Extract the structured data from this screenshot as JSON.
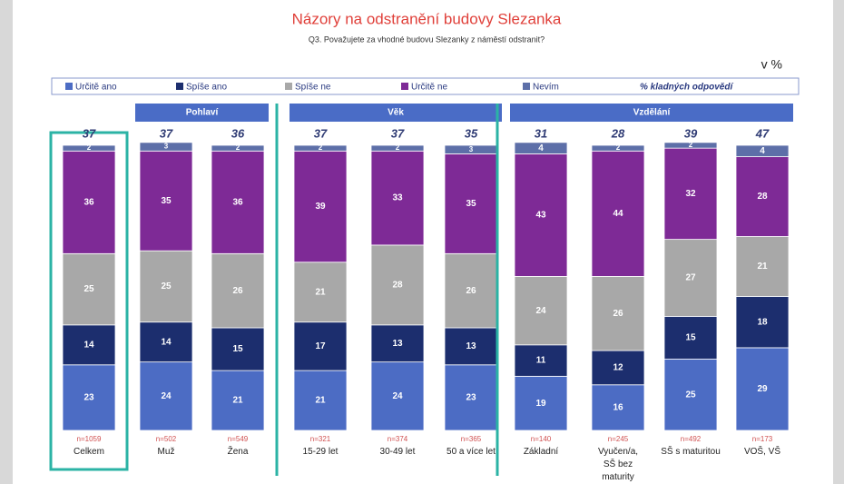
{
  "chart_data": {
    "type": "bar",
    "stacked": true,
    "title": "Názory na odstranění budovy Slezanka",
    "subtitle": "Q3. Považujete za vhodné budovu Slezanky z náměstí odstranit?",
    "unit": "v %",
    "groups": [
      {
        "categories": [
          "Celkem"
        ],
        "sample_sizes": [
          "n=1059"
        ]
      },
      {
        "name": "Pohlaví",
        "categories": [
          "Muž",
          "Žena"
        ],
        "sample_sizes": [
          "n=502",
          "n=549"
        ]
      },
      {
        "name": "Věk",
        "categories": [
          "15-29 let",
          "30-49 let",
          "50 a více let"
        ],
        "sample_sizes": [
          "n=321",
          "n=374",
          "n=365"
        ]
      },
      {
        "name": "Vzdělání",
        "categories": [
          "Základní",
          "Vyučen/a, SŠ bez maturity",
          "SŠ s maturitou",
          "VOŠ, VŠ"
        ],
        "sample_sizes": [
          "n=140",
          "n=245",
          "n=492",
          "n=173"
        ]
      }
    ],
    "series": [
      {
        "name": "Určitě ano",
        "color": "#4c6cc4",
        "values": [
          23,
          24,
          21,
          21,
          24,
          23,
          19,
          16,
          25,
          29
        ]
      },
      {
        "name": "Spíše ano",
        "color": "#1c2e6e",
        "values": [
          14,
          14,
          15,
          17,
          13,
          13,
          11,
          12,
          15,
          18
        ]
      },
      {
        "name": "Spíše ne",
        "color": "#a8a8a8",
        "values": [
          25,
          25,
          26,
          21,
          28,
          26,
          24,
          26,
          27,
          21
        ]
      },
      {
        "name": "Určitě ne",
        "color": "#7e2a96",
        "values": [
          36,
          35,
          36,
          39,
          33,
          35,
          43,
          44,
          32,
          28
        ]
      },
      {
        "name": "Nevím",
        "color": "#5d6fa8",
        "values": [
          2,
          3,
          2,
          2,
          2,
          3,
          4,
          2,
          2,
          4
        ]
      }
    ],
    "positive": {
      "name": "% kladných odpovědí",
      "values": [
        37,
        37,
        36,
        37,
        37,
        35,
        31,
        28,
        39,
        47
      ]
    }
  }
}
